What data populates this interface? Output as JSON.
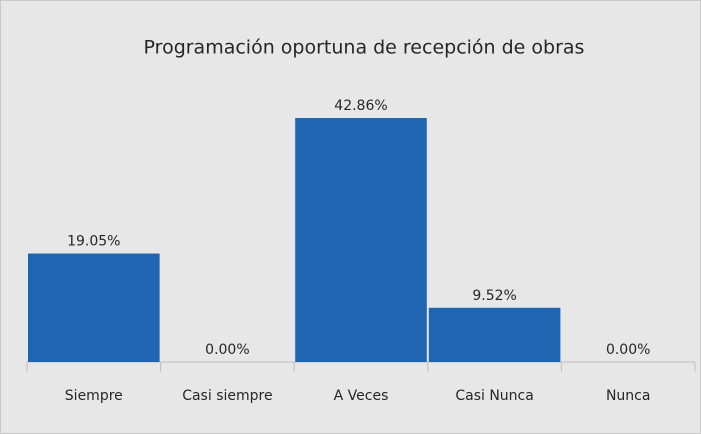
{
  "chart_data": {
    "type": "bar",
    "title": "Programación oportuna de recepción de obras",
    "categories": [
      "Siempre",
      "Casi siempre",
      "A Veces",
      "Casi Nunca",
      "Nunca"
    ],
    "values": [
      19.05,
      0,
      42.86,
      9.52,
      0
    ],
    "value_labels": [
      "19.05%",
      "0.00%",
      "42.86%",
      "9.52%",
      "0.00%"
    ],
    "color": "#1f65b1"
  }
}
